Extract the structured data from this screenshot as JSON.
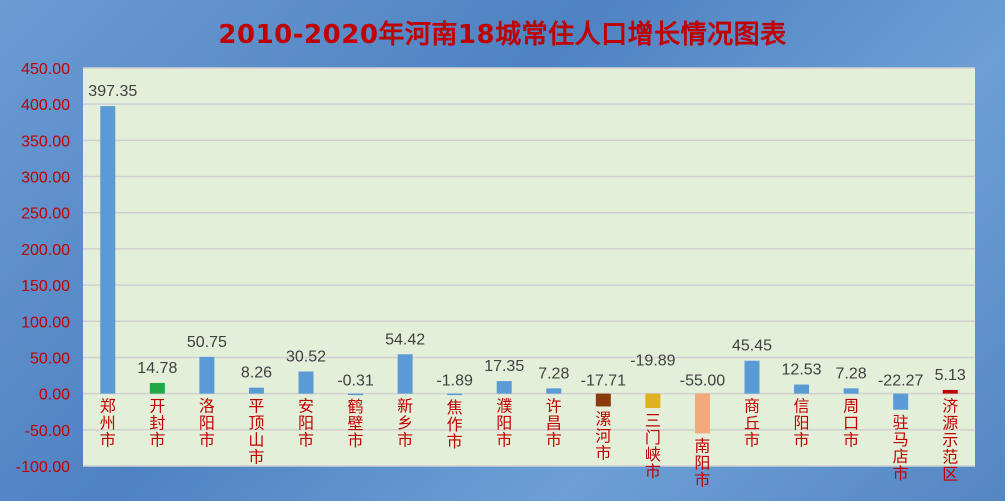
{
  "chart_data": {
    "type": "bar",
    "title": "2010-2020年河南18城常住人口增长情况图表",
    "categories": [
      "郑州市",
      "开封市",
      "洛阳市",
      "平顶山市",
      "安阳市",
      "鹤壁市",
      "新乡市",
      "焦作市",
      "濮阳市",
      "许昌市",
      "漯河市",
      "三门峡市",
      "南阳市",
      "商丘市",
      "信阳市",
      "周口市",
      "驻马店市",
      "济源示范区"
    ],
    "values": [
      397.35,
      14.78,
      50.75,
      8.26,
      30.52,
      -0.31,
      54.42,
      -1.89,
      17.35,
      7.28,
      -17.71,
      -19.89,
      -55.0,
      45.45,
      12.53,
      7.28,
      -22.27,
      5.13
    ],
    "data_labels": [
      "397.35",
      "14.78",
      "50.75",
      "8.26",
      "30.52",
      "-0.31",
      "54.42",
      "-1.89",
      "17.35",
      "7.28",
      "-17.71",
      "-19.89",
      "-55.00",
      "45.45",
      "12.53",
      "7.28",
      "-22.27",
      "5.13"
    ],
    "bar_colors": [
      "#5b9bd5",
      "#1fa845",
      "#5b9bd5",
      "#5b9bd5",
      "#5b9bd5",
      "#5b9bd5",
      "#5b9bd5",
      "#5b9bd5",
      "#5b9bd5",
      "#5b9bd5",
      "#8b3a0e",
      "#e0b020",
      "#f4a97c",
      "#5b9bd5",
      "#5b9bd5",
      "#5b9bd5",
      "#5b9bd5",
      "#c00000"
    ],
    "ylim": [
      -100,
      450
    ],
    "yticks": [
      "450.00",
      "400.00",
      "350.00",
      "300.00",
      "250.00",
      "200.00",
      "150.00",
      "100.00",
      "50.00",
      "0.00",
      "-50.00",
      "-100.00"
    ],
    "ytick_values": [
      450,
      400,
      350,
      300,
      250,
      200,
      150,
      100,
      50,
      0,
      -50,
      -100
    ],
    "grid": true,
    "legend": "none",
    "colors": {
      "title": "#c00000",
      "axis_labels": "#c00000",
      "plot_bg": "#e4efd9",
      "grid": "#d0d0d0",
      "data_label": "#404040"
    }
  }
}
